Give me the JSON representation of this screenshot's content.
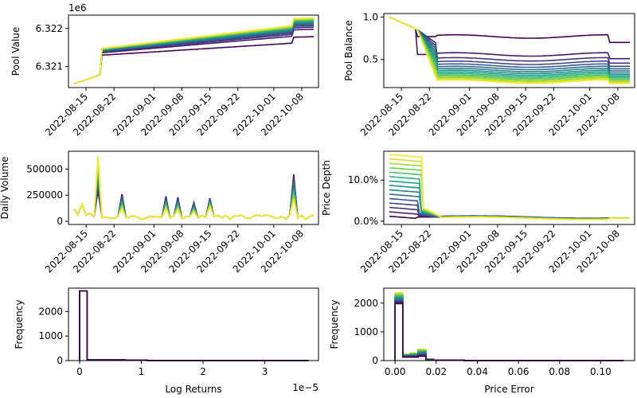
{
  "figure": {
    "colormap": [
      "#440154",
      "#482475",
      "#414487",
      "#355f8d",
      "#2a788e",
      "#21918c",
      "#22a884",
      "#44bf70",
      "#7ad151",
      "#bddf26",
      "#fde725"
    ],
    "n_series": 15
  },
  "chart_data": [
    {
      "id": "pool-value",
      "type": "line",
      "ylabel": "Pool Value",
      "xlabel": "",
      "offset_text": "1e6",
      "x_ticks": [
        "2022-08-15",
        "2022-08-22",
        "2022-09-01",
        "2022-09-08",
        "2022-09-15",
        "2022-09-22",
        "2022-10-01",
        "2022-10-08"
      ],
      "y_ticks": [
        {
          "v": 6.321,
          "label": "6.321"
        },
        {
          "v": 6.322,
          "label": "6.322"
        }
      ],
      "ylim": [
        6.32045,
        6.32235
      ],
      "x_range": [
        "2022-08-12",
        "2022-10-11"
      ],
      "series_summary": {
        "start_all": 6.32055,
        "step_day": "2022-08-19",
        "end_lowest": 6.32177,
        "end_highest": 6.32226,
        "jump_day": "2022-10-06"
      }
    },
    {
      "id": "pool-balance",
      "type": "line",
      "ylabel": "Pool Balance",
      "xlabel": "",
      "x_ticks": [
        "2022-08-15",
        "2022-08-22",
        "2022-09-01",
        "2022-09-08",
        "2022-09-15",
        "2022-09-22",
        "2022-10-01",
        "2022-10-08"
      ],
      "y_ticks": [
        {
          "v": 0.5,
          "label": "0.5"
        },
        {
          "v": 1.0,
          "label": "1.0"
        }
      ],
      "ylim": [
        0.17,
        1.04
      ],
      "x_range": [
        "2022-08-12",
        "2022-10-11"
      ],
      "series_summary": {
        "start_all": 1.0,
        "split_day": "2022-08-19",
        "plateau_highest": 0.77,
        "plateau_lowest": 0.24,
        "end_highest": 0.7,
        "end_lowest": 0.22
      }
    },
    {
      "id": "daily-volume",
      "type": "line",
      "ylabel": "Daily Volume",
      "xlabel": "",
      "x_ticks": [
        "2022-08-15",
        "2022-08-22",
        "2022-09-01",
        "2022-09-08",
        "2022-09-15",
        "2022-09-22",
        "2022-10-01",
        "2022-10-08"
      ],
      "y_ticks": [
        {
          "v": 0,
          "label": "0"
        },
        {
          "v": 250000,
          "label": "250000"
        },
        {
          "v": 500000,
          "label": "500000"
        }
      ],
      "ylim": [
        -30000,
        670000
      ],
      "x_range": [
        "2022-08-12",
        "2022-10-11"
      ],
      "peaks": [
        {
          "date": "2022-08-18",
          "max": 630000,
          "min": 290000
        },
        {
          "date": "2022-08-24",
          "max": 260000,
          "min": 120000
        },
        {
          "date": "2022-09-04",
          "max": 240000,
          "min": 120000
        },
        {
          "date": "2022-09-07",
          "max": 230000,
          "min": 110000
        },
        {
          "date": "2022-09-11",
          "max": 180000,
          "min": 90000
        },
        {
          "date": "2022-09-15",
          "max": 220000,
          "min": 140000
        },
        {
          "date": "2022-10-06",
          "max": 450000,
          "min": 200000
        }
      ]
    },
    {
      "id": "price-depth",
      "type": "line",
      "ylabel": "Price Depth",
      "xlabel": "",
      "x_ticks": [
        "2022-08-15",
        "2022-08-22",
        "2022-09-01",
        "2022-09-08",
        "2022-09-15",
        "2022-09-22",
        "2022-10-01",
        "2022-10-08"
      ],
      "y_ticks": [
        {
          "v": 0.0,
          "label": "0.0%"
        },
        {
          "v": 10.0,
          "label": "10.0%"
        }
      ],
      "ylim": [
        -0.8,
        17.0
      ],
      "x_range": [
        "2022-08-12",
        "2022-10-11"
      ],
      "series_summary": {
        "start_lowest": 1.2,
        "start_highest": 16.2,
        "drop_day": "2022-08-19",
        "plateau": 1.0,
        "end": 0.7
      }
    },
    {
      "id": "log-returns-hist",
      "type": "bar",
      "ylabel": "Frequency",
      "xlabel": "Log Returns",
      "offset_text": "1e−5",
      "x_ticks": [
        {
          "v": 0,
          "label": "0"
        },
        {
          "v": 1,
          "label": "1"
        },
        {
          "v": 2,
          "label": "2"
        },
        {
          "v": 3,
          "label": "3"
        }
      ],
      "y_ticks": [
        {
          "v": 0,
          "label": "0"
        },
        {
          "v": 1000,
          "label": "1000"
        },
        {
          "v": 2000,
          "label": "2000"
        }
      ],
      "xlim": [
        -0.18,
        3.87
      ],
      "ylim": [
        0,
        2950
      ],
      "bins": [
        0.0,
        0.12,
        0.74,
        1.1,
        1.7,
        3.7
      ],
      "counts": [
        2830,
        25,
        15,
        8,
        5
      ]
    },
    {
      "id": "price-error-hist",
      "type": "bar",
      "ylabel": "Frequency",
      "xlabel": "Price Error",
      "x_ticks": [
        {
          "v": 0.0,
          "label": "0.00"
        },
        {
          "v": 0.02,
          "label": "0.02"
        },
        {
          "v": 0.04,
          "label": "0.04"
        },
        {
          "v": 0.06,
          "label": "0.06"
        },
        {
          "v": 0.08,
          "label": "0.08"
        },
        {
          "v": 0.1,
          "label": "0.10"
        }
      ],
      "y_ticks": [
        {
          "v": 0,
          "label": "0"
        },
        {
          "v": 1000,
          "label": "1000"
        },
        {
          "v": 2000,
          "label": "2000"
        }
      ],
      "xlim": [
        -0.0055,
        0.1165
      ],
      "ylim": [
        0,
        2520
      ],
      "bins": [
        0.0,
        0.0037,
        0.0075,
        0.0112,
        0.015,
        0.0187,
        0.0337,
        0.111
      ],
      "counts_max": [
        2360,
        230,
        270,
        400,
        60,
        20,
        5
      ],
      "counts_min": [
        1980,
        120,
        120,
        150,
        20,
        10,
        3
      ]
    }
  ]
}
